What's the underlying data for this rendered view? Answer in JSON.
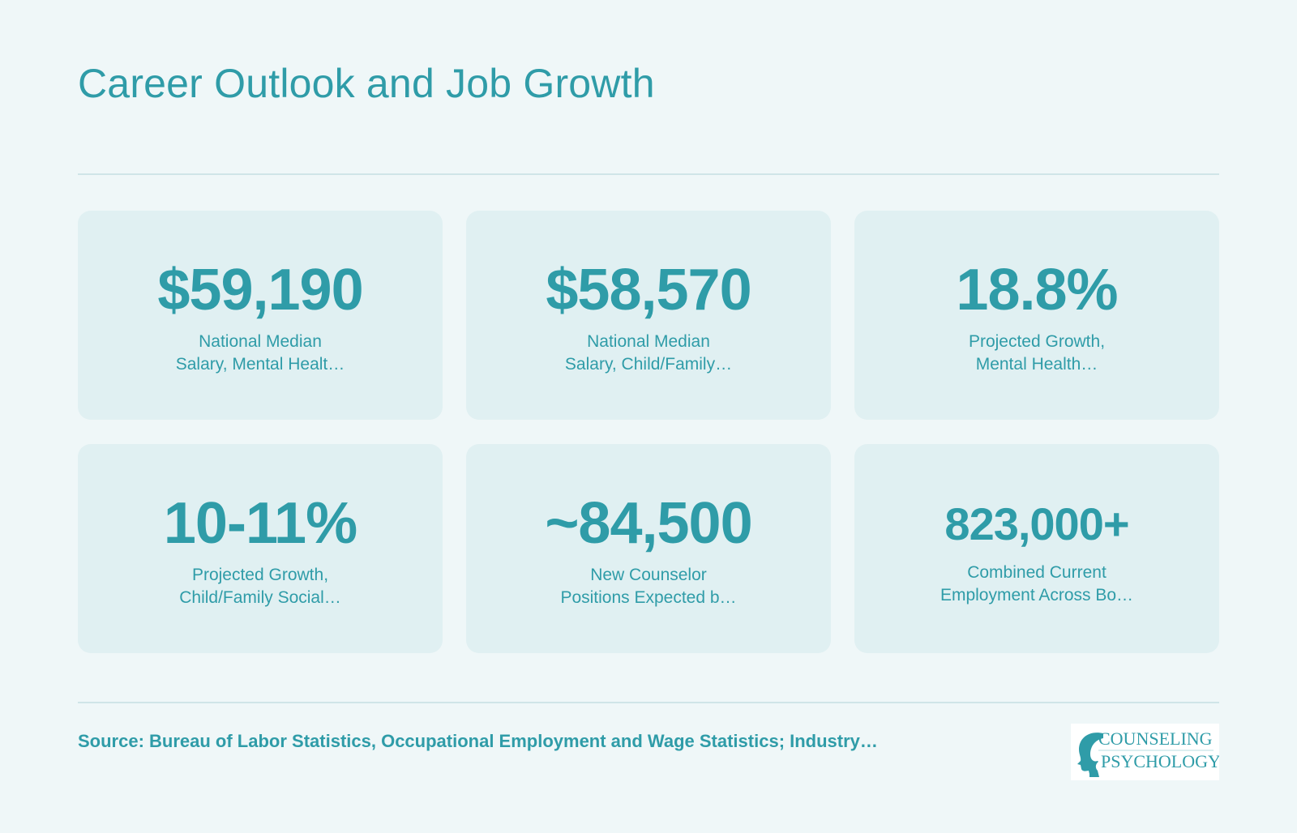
{
  "header": {
    "title": "Career Outlook and Job Growth"
  },
  "stats": [
    {
      "value": "$59,190",
      "label_line1": "National Median",
      "label_line2": "Salary, Mental Healt…"
    },
    {
      "value": "$58,570",
      "label_line1": "National Median",
      "label_line2": "Salary, Child/Family…"
    },
    {
      "value": "18.8%",
      "label_line1": "Projected Growth,",
      "label_line2": "Mental Health…"
    },
    {
      "value": "10-11%",
      "label_line1": "Projected Growth,",
      "label_line2": "Child/Family Social…"
    },
    {
      "value": "~84,500",
      "label_line1": "New Counselor",
      "label_line2": "Positions Expected b…"
    },
    {
      "value": "823,000+",
      "label_line1": "Combined Current",
      "label_line2": "Employment Across Bo…"
    }
  ],
  "footer": {
    "source": "Source: Bureau of Labor Statistics, Occupational Employment and Wage Statistics; Industry…",
    "logo_line1": "COUNSELING",
    "logo_line2": "PSYCHOLOGY"
  },
  "colors": {
    "accent": "#2f9ca8",
    "background": "#eff7f8",
    "card": "#e0f0f2"
  }
}
